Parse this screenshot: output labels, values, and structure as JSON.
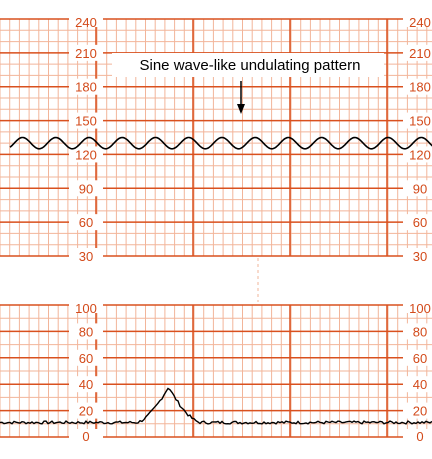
{
  "chart_data": [
    {
      "type": "line",
      "title": "",
      "xlabel": "",
      "ylabel": "",
      "ylim": [
        30,
        240
      ],
      "y_ticks": [
        30,
        60,
        90,
        120,
        150,
        180,
        210,
        240
      ],
      "annotation": "Sine wave-like undulating pattern",
      "series": [
        {
          "baseline": 130,
          "amplitude": 5,
          "cycles": 13
        }
      ]
    },
    {
      "type": "line",
      "title": "",
      "xlabel": "",
      "ylabel": "",
      "ylim": [
        0,
        100
      ],
      "y_ticks": [
        0,
        20,
        40,
        60,
        80,
        100
      ],
      "series": [
        {
          "baseline": 11,
          "peak_value": 38,
          "peak_position": 0.39
        }
      ]
    }
  ],
  "colors": {
    "grid_major": "#d9501e",
    "grid_minor": "#f2b59a",
    "trace": "#000000",
    "label": "#d34a1a"
  }
}
